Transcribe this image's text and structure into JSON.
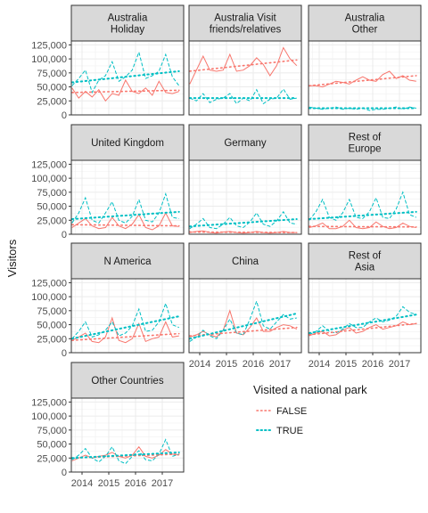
{
  "chart_data": {
    "type": "line",
    "ylabel": "Visitors",
    "legend": {
      "title": "Visited a national park",
      "placement": "bottom-right"
    },
    "x_ticks": [
      "2014",
      "2015",
      "2016",
      "2017"
    ],
    "y_ticks": [
      "0",
      "25,000",
      "50,000",
      "75,000",
      "100,000",
      "125,000"
    ],
    "ylim": [
      0,
      125000
    ],
    "xlim": [
      2013.6,
      2017.8
    ],
    "x_quarters": [
      2013.625,
      2013.875,
      2014.125,
      2014.375,
      2014.625,
      2014.875,
      2015.125,
      2015.375,
      2015.625,
      2015.875,
      2016.125,
      2016.375,
      2016.625,
      2016.875,
      2017.125,
      2017.375,
      2017.625
    ],
    "grid": true,
    "series_styles": [
      {
        "name": "FALSE",
        "color": "#F8766D"
      },
      {
        "name": "TRUE",
        "color": "#00BFC4"
      }
    ],
    "panels": [
      {
        "strip": [
          "Australia",
          "Holiday"
        ],
        "false_values": [
          48000,
          30000,
          42000,
          32000,
          45000,
          25000,
          38000,
          35000,
          62000,
          42000,
          38000,
          48000,
          35000,
          60000,
          40000,
          38000,
          42000
        ],
        "true_values": [
          52000,
          65000,
          80000,
          40000,
          62000,
          70000,
          95000,
          60000,
          68000,
          80000,
          112000,
          65000,
          70000,
          78000,
          108000,
          68000,
          52000
        ],
        "false_trend": [
          40000,
          44000
        ],
        "true_trend": [
          58000,
          78000
        ]
      },
      {
        "strip": [
          "Australia Visit",
          "friends/relatives"
        ],
        "false_values": [
          55000,
          80000,
          105000,
          80000,
          78000,
          80000,
          108000,
          78000,
          80000,
          88000,
          102000,
          90000,
          70000,
          88000,
          120000,
          100000,
          88000
        ],
        "true_values": [
          30000,
          25000,
          38000,
          22000,
          28000,
          30000,
          38000,
          20000,
          30000,
          25000,
          45000,
          20000,
          28000,
          30000,
          46000,
          28000,
          30000
        ],
        "false_trend": [
          78000,
          98000
        ],
        "true_trend": [
          30000,
          30000
        ]
      },
      {
        "strip": [
          "Australia",
          "Other"
        ],
        "false_values": [
          52000,
          52000,
          50000,
          55000,
          60000,
          58000,
          55000,
          62000,
          68000,
          62000,
          60000,
          72000,
          78000,
          65000,
          70000,
          62000,
          60000
        ],
        "true_values": [
          14000,
          12000,
          10000,
          12000,
          14000,
          10000,
          12000,
          10000,
          12000,
          8000,
          10000,
          10000,
          12000,
          14000,
          10000,
          14000,
          12000
        ],
        "false_trend": [
          52000,
          70000
        ],
        "true_trend": [
          12000,
          12000
        ]
      },
      {
        "strip": [
          "United Kingdom"
        ],
        "false_values": [
          12000,
          20000,
          28000,
          15000,
          10000,
          12000,
          30000,
          15000,
          10000,
          18000,
          35000,
          12000,
          8000,
          15000,
          38000,
          15000,
          14000
        ],
        "true_values": [
          20000,
          38000,
          65000,
          25000,
          20000,
          38000,
          58000,
          25000,
          20000,
          32000,
          62000,
          25000,
          22000,
          38000,
          72000,
          30000,
          28000
        ],
        "false_trend": [
          17000,
          15000
        ],
        "true_trend": [
          27000,
          40000
        ]
      },
      {
        "strip": [
          "Germany"
        ],
        "false_values": [
          3000,
          5000,
          6000,
          3000,
          2000,
          4000,
          5000,
          3000,
          2000,
          3000,
          5000,
          3000,
          2000,
          3000,
          5000,
          3000,
          3000
        ],
        "true_values": [
          10000,
          18000,
          28000,
          12000,
          10000,
          18000,
          30000,
          15000,
          12000,
          22000,
          38000,
          18000,
          14000,
          24000,
          40000,
          20000,
          18000
        ],
        "false_trend": [
          4000,
          3000
        ],
        "true_trend": [
          14000,
          27000
        ]
      },
      {
        "strip": [
          "Rest of",
          "Europe"
        ],
        "false_values": [
          12000,
          15000,
          20000,
          10000,
          10000,
          14000,
          25000,
          12000,
          10000,
          12000,
          22000,
          14000,
          10000,
          12000,
          20000,
          14000,
          12000
        ],
        "true_values": [
          25000,
          40000,
          62000,
          30000,
          25000,
          38000,
          62000,
          30000,
          28000,
          40000,
          65000,
          30000,
          28000,
          45000,
          75000,
          35000,
          30000
        ],
        "false_trend": [
          14000,
          13000
        ],
        "true_trend": [
          27000,
          40000
        ]
      },
      {
        "strip": [
          "N America"
        ],
        "false_values": [
          22000,
          28000,
          35000,
          20000,
          18000,
          28000,
          62000,
          22000,
          18000,
          25000,
          52000,
          20000,
          25000,
          28000,
          55000,
          28000,
          30000
        ],
        "true_values": [
          25000,
          38000,
          55000,
          28000,
          32000,
          40000,
          55000,
          30000,
          35000,
          48000,
          78000,
          38000,
          40000,
          55000,
          88000,
          50000,
          45000
        ],
        "false_trend": [
          22000,
          34000
        ],
        "true_trend": [
          25000,
          65000
        ]
      },
      {
        "strip": [
          "China"
        ],
        "false_values": [
          28000,
          32000,
          38000,
          32000,
          28000,
          40000,
          75000,
          35000,
          32000,
          45000,
          62000,
          38000,
          38000,
          45000,
          50000,
          48000,
          42000
        ],
        "true_values": [
          20000,
          28000,
          40000,
          30000,
          25000,
          40000,
          60000,
          35000,
          32000,
          60000,
          92000,
          48000,
          42000,
          55000,
          68000,
          60000,
          62000
        ],
        "false_trend": [
          30000,
          45000
        ],
        "true_trend": [
          25000,
          70000
        ]
      },
      {
        "strip": [
          "Rest of",
          "Asia"
        ],
        "false_values": [
          30000,
          35000,
          38000,
          30000,
          32000,
          40000,
          45000,
          35000,
          38000,
          45000,
          50000,
          42000,
          45000,
          48000,
          55000,
          50000,
          52000
        ],
        "true_values": [
          32000,
          38000,
          48000,
          38000,
          35000,
          42000,
          52000,
          45000,
          45000,
          55000,
          62000,
          55000,
          58000,
          65000,
          82000,
          72000,
          68000
        ],
        "false_trend": [
          32000,
          52000
        ],
        "true_trend": [
          35000,
          68000
        ]
      },
      {
        "strip": [
          "Other Countries"
        ],
        "false_values": [
          20000,
          25000,
          30000,
          25000,
          28000,
          30000,
          35000,
          28000,
          25000,
          30000,
          45000,
          28000,
          25000,
          30000,
          40000,
          32000,
          30000
        ],
        "true_values": [
          22000,
          30000,
          42000,
          25000,
          18000,
          28000,
          45000,
          20000,
          15000,
          28000,
          38000,
          22000,
          20000,
          32000,
          58000,
          28000,
          32000
        ],
        "false_trend": [
          25000,
          32000
        ],
        "true_trend": [
          25000,
          35000
        ]
      }
    ]
  }
}
